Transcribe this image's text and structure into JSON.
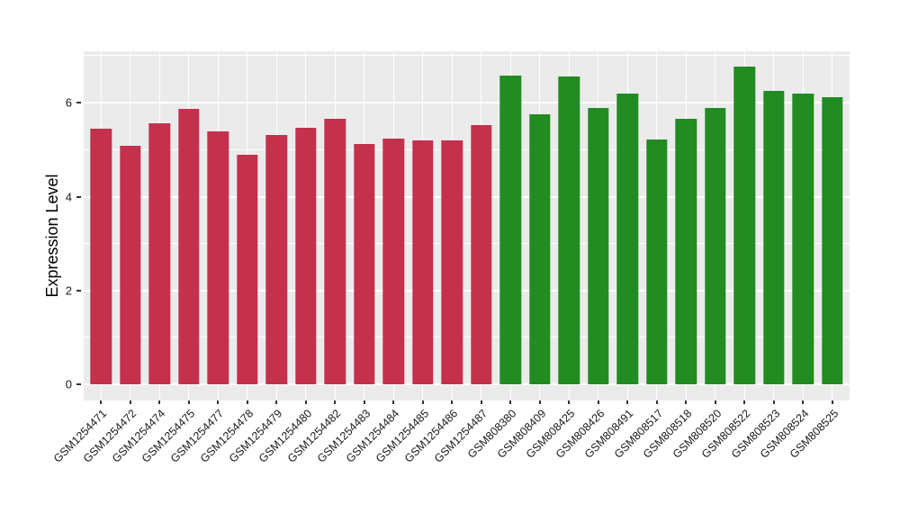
{
  "chart_data": {
    "type": "bar",
    "title": "",
    "xlabel": "",
    "ylabel": "Expression Level",
    "ylim": [
      -0.34,
      7.1
    ],
    "y_major_ticks": [
      0,
      2,
      4,
      6
    ],
    "y_minor_gridlines": [
      1,
      3,
      5,
      7
    ],
    "grid": "on",
    "legend": "none",
    "panel_background": "#EBEBEB",
    "gridline_color": "#ffffff",
    "group_colors": {
      "red": "#C4314D",
      "green": "#228B22"
    },
    "categories": [
      "GSM1254471",
      "GSM1254472",
      "GSM1254474",
      "GSM1254475",
      "GSM1254477",
      "GSM1254478",
      "GSM1254479",
      "GSM1254480",
      "GSM1254482",
      "GSM1254483",
      "GSM1254484",
      "GSM1254485",
      "GSM1254486",
      "GSM1254487",
      "GSM808380",
      "GSM808409",
      "GSM808425",
      "GSM808426",
      "GSM808491",
      "GSM808517",
      "GSM808518",
      "GSM808520",
      "GSM808522",
      "GSM808523",
      "GSM808524",
      "GSM808525"
    ],
    "values": [
      5.46,
      5.09,
      5.56,
      5.88,
      5.39,
      4.89,
      5.32,
      5.47,
      5.66,
      5.12,
      5.24,
      5.2,
      5.21,
      5.52,
      6.58,
      5.75,
      6.57,
      5.9,
      6.2,
      5.23,
      5.66,
      5.89,
      6.78,
      6.26,
      6.19,
      6.13
    ],
    "bar_groups": [
      "red",
      "red",
      "red",
      "red",
      "red",
      "red",
      "red",
      "red",
      "red",
      "red",
      "red",
      "red",
      "red",
      "red",
      "green",
      "green",
      "green",
      "green",
      "green",
      "green",
      "green",
      "green",
      "green",
      "green",
      "green",
      "green"
    ]
  }
}
